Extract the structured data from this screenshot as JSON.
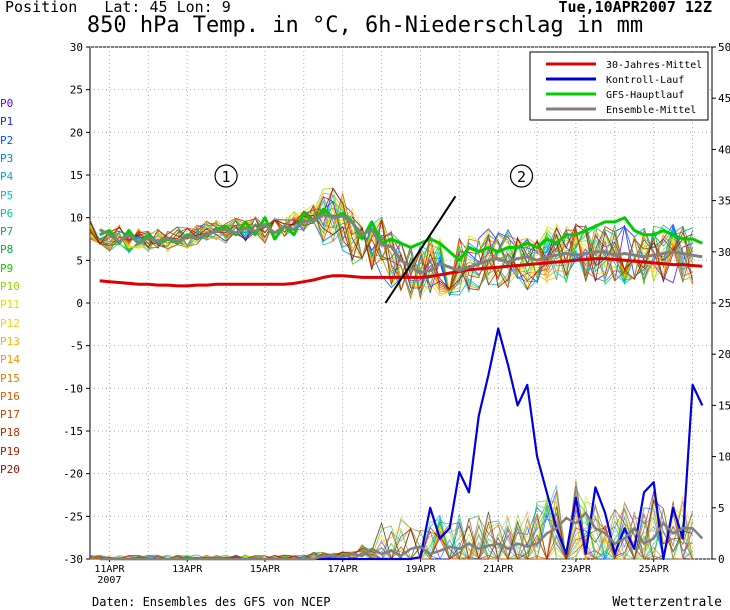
{
  "header": {
    "position_label": "Position",
    "lat_label": "Lat: 45 Lon: 9",
    "run_label": "Tue,10APR2007 12Z",
    "title": "850 hPa Temp. in °C, 6h-Niederschlag in mm"
  },
  "members": [
    "P0",
    "P1",
    "P2",
    "P3",
    "P4",
    "P5",
    "P6",
    "P7",
    "P8",
    "P9",
    "P10",
    "P11",
    "P12",
    "P13",
    "P14",
    "P15",
    "P16",
    "P17",
    "P18",
    "P19",
    "P20"
  ],
  "member_colors": [
    "#5a00ff",
    "#1a1aff",
    "#0055ff",
    "#0080ff",
    "#00a8e8",
    "#00c8c8",
    "#00c89a",
    "#00b060",
    "#00b030",
    "#20c010",
    "#90d800",
    "#e0e000",
    "#ffd000",
    "#ffb000",
    "#ff9000",
    "#e07800",
    "#d06000",
    "#c04800",
    "#b03000",
    "#a02000",
    "#901000"
  ],
  "annotations": {
    "period_1": "1",
    "period_2": "2"
  },
  "footer": {
    "source": "Daten: Ensembles des GFS von NCEP",
    "brand": "Wetterzentrale"
  },
  "chart_data": {
    "type": "line",
    "xlabel": "",
    "x_ticks": [
      "11APR\n2007",
      "13APR",
      "15APR",
      "17APR",
      "19APR",
      "21APR",
      "23APR",
      "25APR"
    ],
    "x_tick_days": [
      11,
      13,
      15,
      17,
      19,
      21,
      23,
      25
    ],
    "x_range": [
      10.5,
      26.5
    ],
    "y_left": {
      "label": "",
      "range": [
        -30,
        30
      ],
      "ticks": [
        30,
        25,
        20,
        15,
        10,
        5,
        0,
        -5,
        -10,
        -15,
        -20,
        -25,
        -30
      ]
    },
    "y_right": {
      "label": "",
      "range": [
        0,
        50
      ],
      "ticks": [
        50,
        45,
        40,
        35,
        30,
        25,
        20,
        15,
        10,
        5,
        0
      ]
    },
    "grid": true,
    "legend_position": "top-right",
    "x_step_days": 0.25,
    "series": [
      {
        "name": "30-Jahres-Mittel",
        "axis": "left",
        "color": "#dd0000",
        "width": 3,
        "values": [
          2.6,
          2.5,
          2.4,
          2.3,
          2.2,
          2.2,
          2.1,
          2.1,
          2.0,
          2.0,
          2.1,
          2.1,
          2.2,
          2.2,
          2.2,
          2.2,
          2.2,
          2.2,
          2.2,
          2.2,
          2.3,
          2.5,
          2.7,
          3.0,
          3.2,
          3.2,
          3.1,
          3.0,
          3.0,
          3.0,
          3.0,
          3.0,
          3.0,
          3.0,
          3.1,
          3.3,
          3.5,
          3.7,
          3.9,
          4.0,
          4.1,
          4.2,
          4.3,
          4.4,
          4.5,
          4.6,
          4.7,
          4.8,
          4.9,
          5.0,
          5.1,
          5.2,
          5.2,
          5.1,
          5.0,
          4.9,
          4.8,
          4.7,
          4.6,
          4.5,
          4.5,
          4.4,
          4.3
        ]
      },
      {
        "name": "Kontroll-Lauf",
        "axis": "right",
        "color": "#0000dd",
        "width": 2.2,
        "values": [
          0,
          0,
          0,
          0,
          0,
          0,
          0,
          0,
          0,
          0,
          0,
          0,
          0,
          0,
          0,
          0,
          0,
          0,
          0,
          0,
          0,
          0,
          0,
          0,
          0,
          0,
          0,
          0,
          0,
          0,
          0,
          0,
          0,
          0.2,
          5,
          2,
          3,
          8.5,
          6.5,
          14,
          18,
          22.5,
          19,
          15,
          17,
          10,
          6.5,
          3,
          0.5,
          6,
          0.5,
          7,
          4.5,
          0.5,
          3,
          1,
          6.5,
          7.5,
          0,
          5,
          2,
          17,
          15
        ]
      },
      {
        "name": "GFS-Hauptlauf",
        "axis": "left",
        "color": "#00cc00",
        "width": 3,
        "values": [
          8.0,
          8.5,
          7.0,
          8.5,
          7.0,
          8.0,
          7.0,
          7.5,
          7.0,
          8.0,
          7.5,
          8.0,
          8.5,
          9.0,
          8.0,
          9.5,
          8.0,
          10.0,
          7.5,
          9.0,
          8.0,
          10.5,
          9.5,
          11.0,
          10.0,
          10.5,
          9.5,
          7.5,
          9.5,
          7.0,
          7.5,
          7.0,
          6.5,
          7.0,
          7.5,
          7.0,
          6.0,
          5.0,
          6.5,
          6.0,
          6.5,
          6.0,
          6.5,
          6.5,
          7.0,
          6.5,
          7.5,
          7.0,
          8.0,
          8.0,
          8.5,
          9.0,
          9.5,
          9.5,
          10.0,
          8.5,
          8.0,
          8.0,
          8.5,
          8.0,
          7.5,
          7.5,
          7.0
        ]
      },
      {
        "name": "Ensemble-Mittel",
        "axis": "left",
        "color": "#808080",
        "width": 3,
        "values": [
          8.6,
          8.0,
          7.2,
          8.0,
          7.0,
          7.6,
          7.2,
          7.6,
          7.2,
          7.8,
          7.6,
          8.0,
          8.4,
          8.6,
          8.2,
          8.8,
          8.4,
          9.2,
          8.2,
          9.0,
          8.6,
          9.6,
          9.6,
          10.4,
          10.0,
          10.2,
          9.4,
          8.0,
          8.6,
          6.8,
          6.6,
          5.0,
          4.2,
          3.6,
          3.8,
          4.6,
          4.2,
          3.8,
          4.2,
          4.6,
          5.0,
          5.2,
          4.8,
          5.2,
          5.4,
          5.0,
          5.4,
          5.6,
          5.8,
          5.6,
          5.8,
          6.0,
          6.0,
          5.6,
          5.8,
          5.6,
          5.4,
          5.6,
          5.8,
          6.0,
          5.8,
          5.6,
          5.4
        ]
      },
      {
        "name": "Ensemble-Mittel",
        "axis": "right",
        "color": "#808080",
        "width": 2.5,
        "values": [
          0,
          0,
          0,
          0,
          0,
          0,
          0,
          0,
          0,
          0,
          0,
          0,
          0,
          0,
          0,
          0,
          0,
          0,
          0,
          0,
          0,
          0,
          0,
          0.3,
          0.3,
          0.2,
          0.5,
          0.3,
          1.0,
          0.5,
          0.8,
          0.3,
          1.0,
          1.2,
          0.5,
          0.8,
          1.2,
          1.0,
          1.5,
          1.0,
          1.3,
          1.5,
          1.0,
          1.5,
          1.2,
          1.5,
          2.5,
          3,
          4,
          3.5,
          4.5,
          3,
          2.5,
          1.5,
          2,
          3,
          1.5,
          2,
          3.5,
          2.5,
          3,
          3,
          2
        ]
      }
    ]
  }
}
